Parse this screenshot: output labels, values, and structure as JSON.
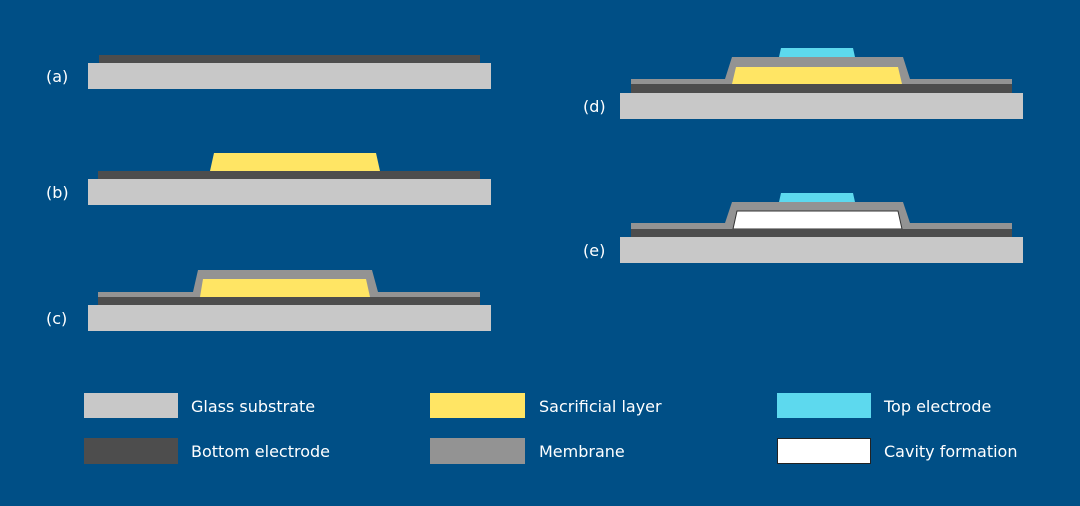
{
  "steps": [
    {
      "label": "(a)"
    },
    {
      "label": "(b)"
    },
    {
      "label": "(c)"
    },
    {
      "label": "(d)"
    },
    {
      "label": "(e)"
    }
  ],
  "legend": [
    {
      "label": "Glass substrate",
      "color": "#C8C8C8"
    },
    {
      "label": "Sacrificial layer",
      "color": "#FFE564"
    },
    {
      "label": "Top electrode",
      "color": "#5DD9EE"
    },
    {
      "label": "Bottom electrode",
      "color": "#4D4D4D"
    },
    {
      "label": "Membrane",
      "color": "#939393"
    },
    {
      "label": "Cavity formation",
      "color": "#FFFFFF"
    }
  ],
  "colors": {
    "background": "#004F86"
  }
}
